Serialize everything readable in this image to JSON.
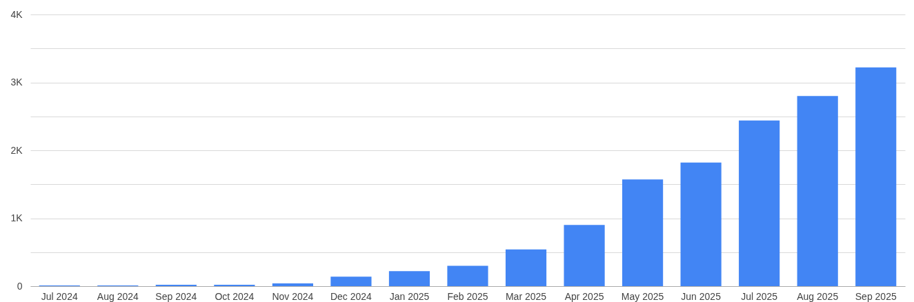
{
  "chart_data": {
    "type": "bar",
    "categories": [
      "Jul 2024",
      "Aug 2024",
      "Sep 2024",
      "Oct 2024",
      "Nov 2024",
      "Dec 2024",
      "Jan 2025",
      "Feb 2025",
      "Mar 2025",
      "Apr 2025",
      "May 2025",
      "Jun 2025",
      "Jul 2025",
      "Aug 2025",
      "Sep 2025"
    ],
    "values": [
      10,
      10,
      20,
      20,
      40,
      140,
      220,
      300,
      540,
      900,
      1570,
      1820,
      2440,
      2800,
      3220
    ],
    "color": "#4285f4",
    "ylim": [
      0,
      4000
    ],
    "yticks": [
      0,
      {
        "value": 500,
        "label": null
      },
      {
        "value": 1000,
        "label": "1K"
      },
      {
        "value": 1500,
        "label": null
      },
      {
        "value": 2000,
        "label": "2K"
      },
      {
        "value": 2500,
        "label": null
      },
      {
        "value": 3000,
        "label": "3K"
      },
      {
        "value": 3500,
        "label": null
      },
      {
        "value": 4000,
        "label": "4K"
      }
    ],
    "grid": "y"
  }
}
